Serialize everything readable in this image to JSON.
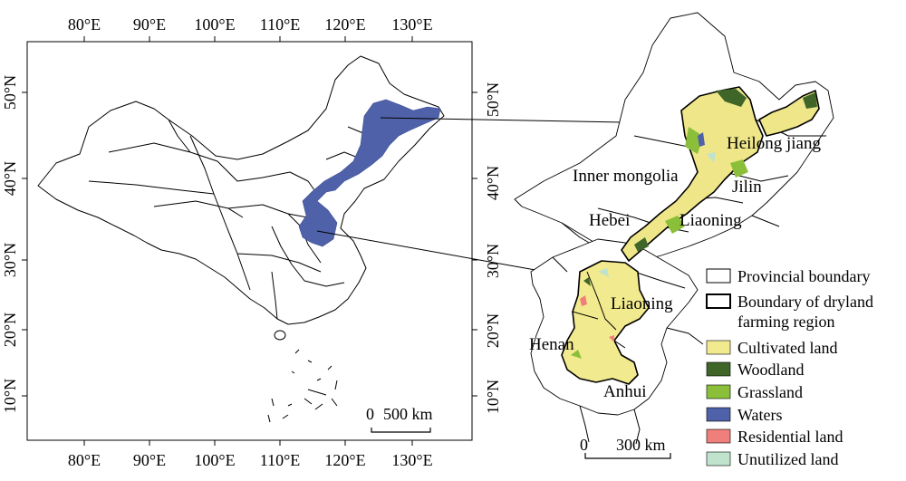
{
  "overview_map": {
    "top_lon_labels": [
      "80°E",
      "90°E",
      "100°E",
      "110°E",
      "120°E",
      "130°E"
    ],
    "bottom_lon_labels": [
      "80°E",
      "90°E",
      "100°E",
      "110°E",
      "120°E",
      "130°E"
    ],
    "lat_labels": [
      "50°N",
      "40°N",
      "30°N",
      "20°N",
      "10°N"
    ],
    "scalebar": {
      "zero": "0",
      "distance": "500 km"
    }
  },
  "detail_map": {
    "lat_labels": [
      "50°N",
      "40°N",
      "30°N",
      "20°N",
      "10°N"
    ],
    "place_labels": {
      "heilongjiang": "Heilong jiang",
      "inner_mongolia": "Inner mongolia",
      "jilin": "Jilin",
      "hebei": "Hebei",
      "liaoning_north": "Liaoning",
      "liaoning_south": "Liaoning",
      "henan": "Henan",
      "anhui": "Anhui"
    },
    "scalebar": {
      "zero": "0",
      "distance": "300 km"
    }
  },
  "legend": {
    "items": [
      {
        "key": "provincial_boundary",
        "label": "Provincial boundary",
        "color": "#ffffff",
        "style": "thin-outline"
      },
      {
        "key": "dryland_boundary",
        "label": "Boundary of dryland farming region",
        "color": "#ffffff",
        "style": "thick-outline"
      },
      {
        "key": "cultivated",
        "label": "Cultivated land",
        "color": "#f2ea8e"
      },
      {
        "key": "woodland",
        "label": "Woodland",
        "color": "#3f6528"
      },
      {
        "key": "grassland",
        "label": "Grassland",
        "color": "#8bbf3a"
      },
      {
        "key": "waters",
        "label": "Waters",
        "color": "#4f61a8"
      },
      {
        "key": "residential",
        "label": "Residential land",
        "color": "#ef7f7a"
      },
      {
        "key": "unutilized",
        "label": "Unutilized land",
        "color": "#bfe3cc"
      }
    ]
  }
}
